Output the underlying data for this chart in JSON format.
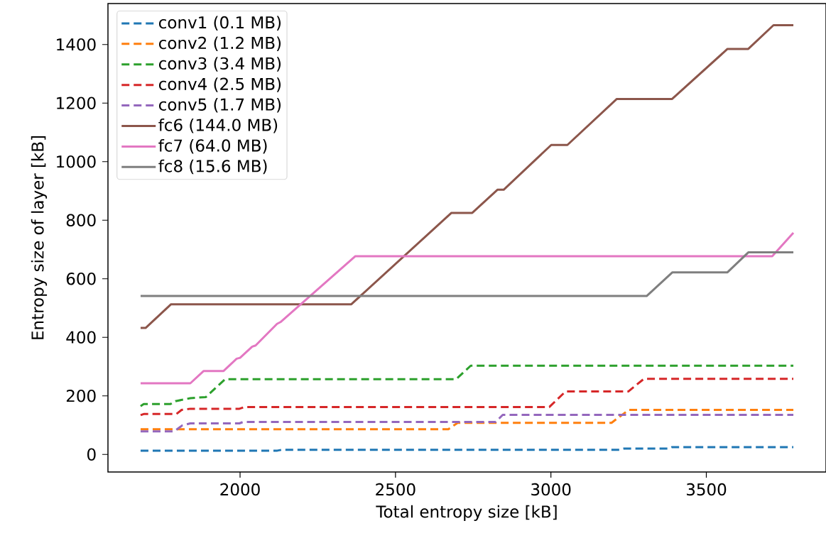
{
  "chart_data": {
    "type": "line",
    "xlabel": "Total entropy size [kB]",
    "ylabel": "Entropy size of layer [kB]",
    "xlim": [
      1575,
      3885
    ],
    "ylim": [
      -60,
      1540
    ],
    "xticks": [
      2000,
      2500,
      3000,
      3500
    ],
    "yticks": [
      0,
      200,
      400,
      600,
      800,
      1000,
      1200,
      1400
    ],
    "grid": false,
    "legend": "top left",
    "marker": "none",
    "series": [
      {
        "name": "conv1 (0.1 MB)",
        "color": "#1f77b4",
        "line_style": "dashed",
        "x": [
          1680,
          2120,
          2135,
          3220,
          3235,
          3380,
          3390,
          3780
        ],
        "values": [
          13,
          13,
          16,
          16,
          20,
          20,
          25,
          25
        ]
      },
      {
        "name": "conv2 (1.2 MB)",
        "color": "#ff7f0e",
        "line_style": "dashed",
        "x": [
          1680,
          2670,
          2700,
          3195,
          3250,
          3780
        ],
        "values": [
          86,
          86,
          108,
          108,
          152,
          152
        ]
      },
      {
        "name": "conv3 (3.4 MB)",
        "color": "#2ca02c",
        "line_style": "dashed",
        "x": [
          1680,
          1690,
          1776,
          1792,
          1840,
          1890,
          1952,
          2695,
          2742,
          3780
        ],
        "values": [
          165,
          172,
          172,
          182,
          192,
          196,
          257,
          257,
          303,
          303
        ]
      },
      {
        "name": "conv4 (2.5 MB)",
        "color": "#d62728",
        "line_style": "dashed",
        "x": [
          1680,
          1690,
          1795,
          1812,
          1840,
          1998,
          2015,
          2995,
          3047,
          3249,
          3299,
          3780
        ],
        "values": [
          134,
          138,
          138,
          152,
          156,
          156,
          162,
          162,
          215,
          215,
          258,
          258
        ]
      },
      {
        "name": "conv5 (1.7 MB)",
        "color": "#9467bd",
        "line_style": "dashed",
        "x": [
          1680,
          1788,
          1814,
          1840,
          1998,
          2010,
          2822,
          2845,
          3780
        ],
        "values": [
          79,
          79,
          99,
          106,
          106,
          111,
          111,
          135,
          135
        ]
      },
      {
        "name": "fc6 (144.0 MB)",
        "color": "#8c564b",
        "line_style": "solid",
        "x": [
          1680,
          1696,
          1778,
          2358,
          2680,
          2747,
          2828,
          2848,
          3001,
          3053,
          3212,
          3390,
          3568,
          3635,
          3716,
          3780
        ],
        "values": [
          432,
          432,
          513,
          513,
          825,
          825,
          904,
          904,
          1057,
          1057,
          1214,
          1214,
          1385,
          1385,
          1466,
          1466
        ]
      },
      {
        "name": "fc7 (64.0 MB)",
        "color": "#e377c2",
        "line_style": "solid",
        "x": [
          1680,
          1840,
          1883,
          1947,
          1989,
          2000,
          2039,
          2050,
          2119,
          2130,
          2371,
          3712,
          3780
        ],
        "values": [
          243,
          243,
          285,
          285,
          327,
          330,
          368,
          372,
          446,
          452,
          677,
          677,
          757
        ]
      },
      {
        "name": "fc8 (15.6 MB)",
        "color": "#7f7f7f",
        "line_style": "solid",
        "x": [
          1680,
          3308,
          3391,
          3568,
          3635,
          3780
        ],
        "values": [
          541,
          541,
          622,
          622,
          690,
          690
        ]
      }
    ]
  }
}
